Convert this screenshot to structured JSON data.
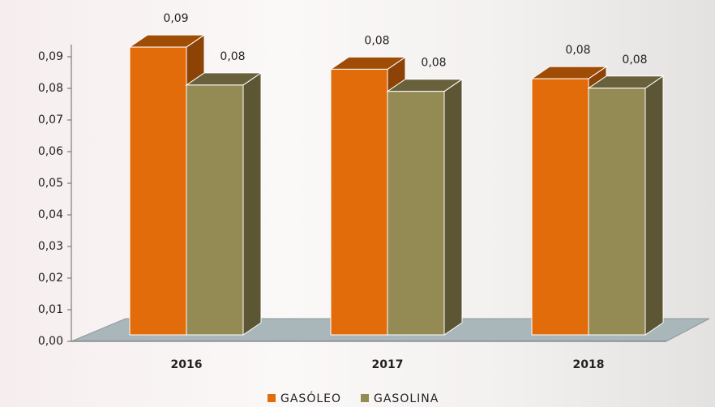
{
  "chart_data": {
    "type": "bar3d",
    "categories": [
      "2016",
      "2017",
      "2018"
    ],
    "series": [
      {
        "name": "GASÓLEO",
        "color": "#e36c0a",
        "values": [
          0.091,
          0.084,
          0.081
        ],
        "value_labels": [
          "0,09",
          "0,08",
          "0,08"
        ]
      },
      {
        "name": "GASOLINA",
        "color": "#948a54",
        "values": [
          0.079,
          0.077,
          0.078
        ],
        "value_labels": [
          "0,08",
          "0,08",
          "0,08"
        ]
      }
    ],
    "ylim": [
      0,
      0.09
    ],
    "yticks": [
      {
        "value": 0,
        "label": "0,00"
      },
      {
        "value": 0.01,
        "label": "0,01"
      },
      {
        "value": 0.02,
        "label": "0,02"
      },
      {
        "value": 0.03,
        "label": "0,03"
      },
      {
        "value": 0.04,
        "label": "0,04"
      },
      {
        "value": 0.05,
        "label": "0,05"
      },
      {
        "value": 0.06,
        "label": "0,06"
      },
      {
        "value": 0.07,
        "label": "0,07"
      },
      {
        "value": 0.08,
        "label": "0,08"
      },
      {
        "value": 0.09,
        "label": "0,09"
      }
    ],
    "legend": "bottom"
  }
}
